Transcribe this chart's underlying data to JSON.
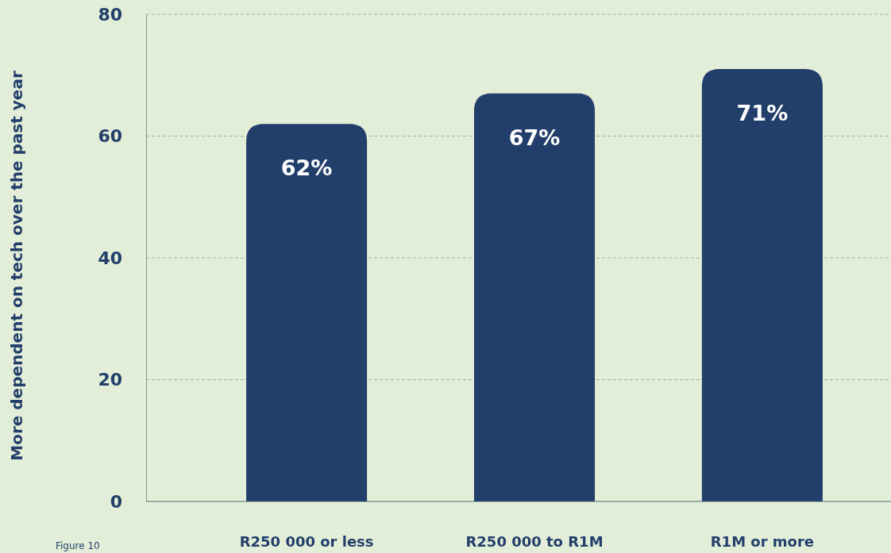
{
  "chart_data": {
    "type": "bar",
    "ylabel": "More dependent on tech over the past year",
    "categories": [
      "R250 000 or less",
      "R250 000 to R1M",
      "R1M or more"
    ],
    "values": [
      62,
      67,
      71
    ],
    "color": "#223f6b",
    "value_labels": [
      "62%",
      "67%",
      "71%"
    ],
    "ylim": [
      0,
      80
    ],
    "yticks": [
      0,
      20,
      40,
      60,
      80
    ],
    "grid": "y",
    "annotations": [
      "Figure 10"
    ]
  }
}
